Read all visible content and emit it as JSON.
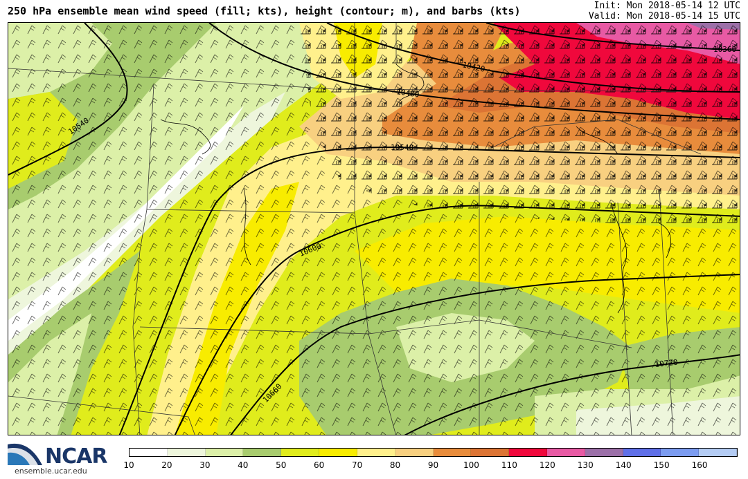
{
  "header": {
    "title": "250 hPa ensemble mean wind speed (fill; kts), height (contour; m), and barbs (kts)",
    "init": "Init: Mon 2018-05-14 12 UTC",
    "valid": "Valid: Mon 2018-05-14 15 UTC"
  },
  "logo": {
    "word": "NCAR",
    "url": "ensemble.ucar.edu"
  },
  "colorbar": {
    "ticks": [
      "10",
      "20",
      "30",
      "40",
      "50",
      "60",
      "70",
      "80",
      "90",
      "100",
      "110",
      "120",
      "130",
      "140",
      "150",
      "160"
    ],
    "colors": [
      "#ffffff",
      "#eef6dc",
      "#dcf0a8",
      "#a8cc6e",
      "#e0ec1c",
      "#f8ec00",
      "#fff08c",
      "#f8d080",
      "#e88c3c",
      "#dc7434",
      "#f0083c",
      "#e85aa4",
      "#9c70a8",
      "#6070e8",
      "#7c9cf0",
      "#b4ccf4"
    ]
  },
  "contours": {
    "labels": [
      "10360",
      "10420",
      "10480",
      "10540",
      "10540",
      "10600",
      "10660",
      "10720"
    ]
  }
}
